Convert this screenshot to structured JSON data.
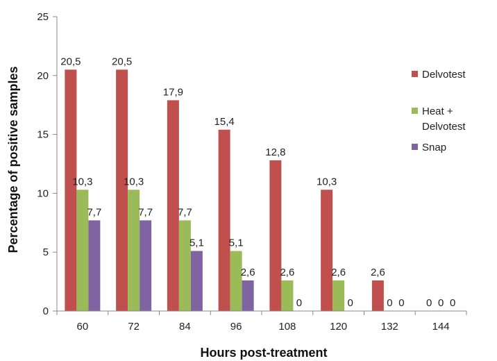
{
  "chart_data": {
    "type": "bar",
    "xlabel": "Hours post-treatment",
    "ylabel": "Percentage of positive samples",
    "ylim": [
      0,
      25
    ],
    "yticks": [
      0,
      5,
      10,
      15,
      20,
      25
    ],
    "categories": [
      "60",
      "72",
      "84",
      "96",
      "108",
      "120",
      "132",
      "144"
    ],
    "series": [
      {
        "name": "Delvotest",
        "name_lines": [
          "Delvotest"
        ],
        "color": "#C0504D",
        "values": [
          20.5,
          20.5,
          17.9,
          15.4,
          12.8,
          10.3,
          2.6,
          0
        ],
        "labels": [
          "20,5",
          "20,5",
          "17,9",
          "15,4",
          "12,8",
          "10,3",
          "2,6",
          "0"
        ]
      },
      {
        "name": "Heat + Delvotest",
        "name_lines": [
          "Heat +",
          "Delvotest"
        ],
        "color": "#9BBB59",
        "values": [
          10.3,
          10.3,
          7.7,
          5.1,
          2.6,
          2.6,
          0,
          0
        ],
        "labels": [
          "10,3",
          "10,3",
          "7,7",
          "5,1",
          "2,6",
          "2,6",
          "0",
          "0"
        ]
      },
      {
        "name": "Snap",
        "name_lines": [
          "Snap"
        ],
        "color": "#8064A2",
        "values": [
          7.7,
          7.7,
          5.1,
          2.6,
          0,
          0,
          0,
          0
        ],
        "labels": [
          "7,7",
          "7,7",
          "5,1",
          "2,6",
          "0",
          "0",
          "0",
          "0"
        ]
      }
    ],
    "legend_position": "right",
    "grid": false
  }
}
